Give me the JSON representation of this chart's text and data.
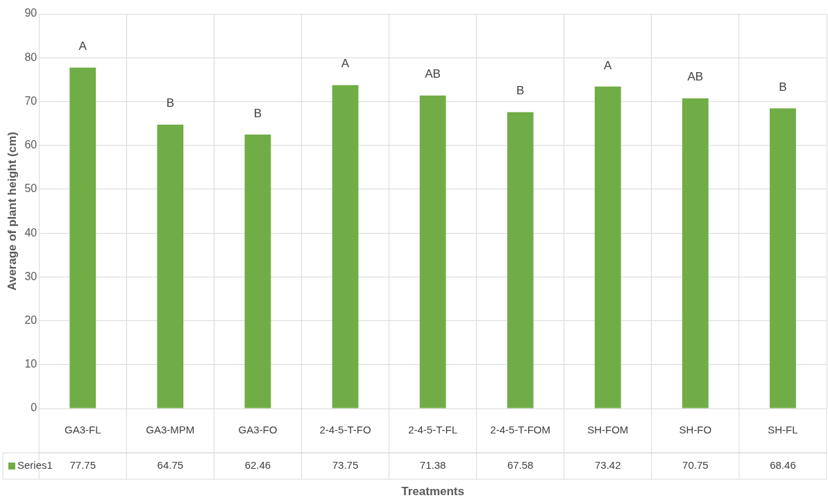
{
  "chart_data": {
    "type": "bar",
    "xlabel": "Treatments",
    "ylabel": "Average of plant height (cm)",
    "categories": [
      "GA3-FL",
      "GA3-MPM",
      "GA3-FO",
      "2-4-5-T-FO",
      "2-4-5-T-FL",
      "2-4-5-T-FOM",
      "SH-FOM",
      "SH-FO",
      "SH-FL"
    ],
    "series": [
      {
        "name": "Series1",
        "color": "#70ad47",
        "values": [
          77.75,
          64.75,
          62.46,
          73.75,
          71.38,
          67.58,
          73.42,
          70.75,
          68.46
        ]
      }
    ],
    "ylim": [
      0,
      90
    ],
    "yticks": [
      0,
      10,
      20,
      30,
      40,
      50,
      60,
      70,
      80,
      90
    ],
    "grid": true,
    "legend": "bottom",
    "data_labels": true,
    "annotations": [
      {
        "text": "A",
        "x": "GA3-FL",
        "y": 77.75
      },
      {
        "text": "B",
        "x": "GA3-MPM",
        "y": 64.75
      },
      {
        "text": "B",
        "x": "GA3-FO",
        "y": 62.46
      },
      {
        "text": "A",
        "x": "2-4-5-T-FO",
        "y": 73.75
      },
      {
        "text": "AB",
        "x": "2-4-5-T-FL",
        "y": 71.38
      },
      {
        "text": "B",
        "x": "2-4-5-T-FOM",
        "y": 67.58
      },
      {
        "text": "A",
        "x": "SH-FOM",
        "y": 73.42
      },
      {
        "text": "AB",
        "x": "SH-FO",
        "y": 70.75
      },
      {
        "text": "B",
        "x": "SH-FL",
        "y": 68.46
      }
    ]
  }
}
